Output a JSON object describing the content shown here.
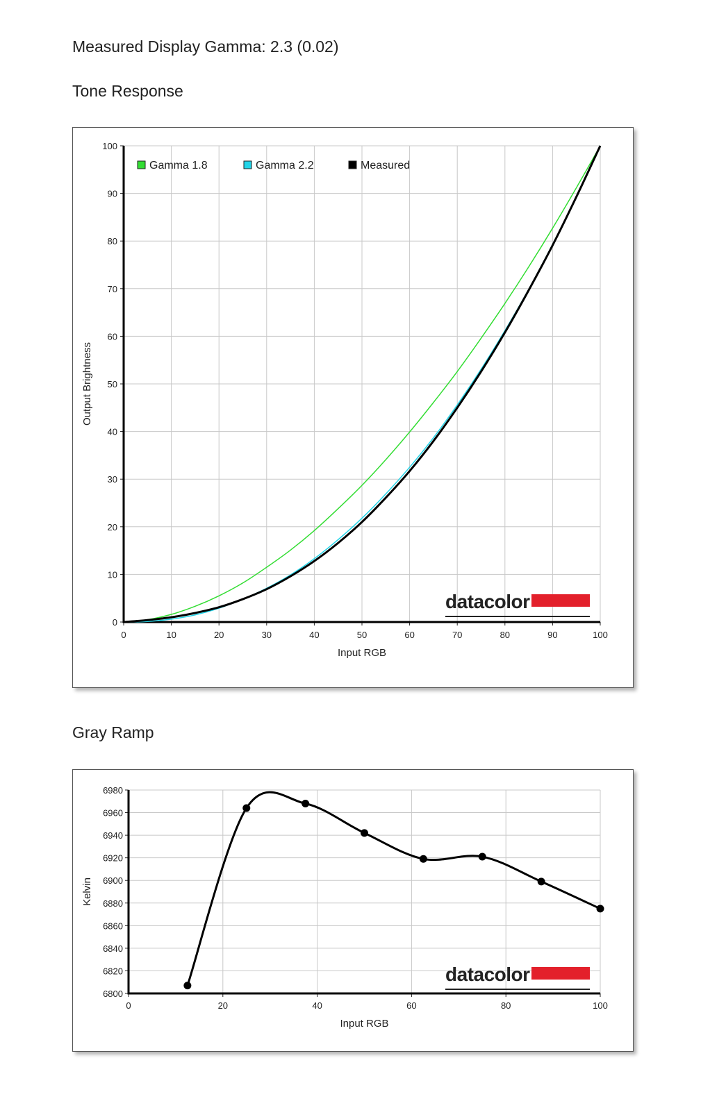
{
  "page": {
    "gamma_heading": "Measured Display Gamma: 2.3 (0.02)",
    "tone_heading": "Tone Response",
    "gray_heading": "Gray Ramp",
    "brand_text": "datacolor",
    "brand_color": "#e3202b"
  },
  "chart_data": [
    {
      "type": "line",
      "xlabel": "Input RGB",
      "ylabel": "Output Brightness",
      "xlim": [
        0,
        100
      ],
      "ylim": [
        0,
        100
      ],
      "xticks": [
        0,
        10,
        20,
        30,
        40,
        50,
        60,
        70,
        80,
        90,
        100
      ],
      "yticks": [
        0,
        10,
        20,
        30,
        40,
        50,
        60,
        70,
        80,
        90,
        100
      ],
      "grid": true,
      "legend_position": "top-left",
      "x": [
        0,
        5,
        10,
        15,
        20,
        25,
        30,
        35,
        40,
        45,
        50,
        55,
        60,
        65,
        70,
        75,
        80,
        85,
        90,
        95,
        100
      ],
      "series": [
        {
          "name": "Gamma 1.8",
          "color": "#33dd33",
          "line_width": 1.5,
          "values": [
            0,
            0.5,
            1.6,
            3.3,
            5.5,
            8.2,
            11.5,
            15.1,
            19.2,
            23.8,
            28.7,
            34.1,
            39.9,
            46.1,
            52.6,
            59.6,
            66.9,
            74.6,
            82.7,
            91.2,
            100
          ]
        },
        {
          "name": "Gamma 2.2",
          "color": "#22d4e8",
          "line_width": 1.5,
          "values": [
            0,
            0.1,
            0.6,
            1.5,
            2.9,
            4.8,
            7.1,
            9.9,
            13.3,
            17.3,
            21.8,
            26.9,
            32.5,
            38.7,
            45.6,
            53.1,
            61.2,
            69.9,
            79.3,
            89.3,
            100
          ]
        },
        {
          "name": "Measured",
          "color": "#000000",
          "line_width": 3,
          "values": [
            0,
            0.4,
            1.0,
            1.9,
            3.1,
            4.8,
            6.9,
            9.6,
            12.8,
            16.6,
            21.0,
            26.1,
            31.7,
            38.0,
            45.0,
            52.6,
            60.8,
            69.7,
            79.1,
            89.3,
            100
          ]
        }
      ]
    },
    {
      "type": "line",
      "xlabel": "Input RGB",
      "ylabel": "Kelvin",
      "xlim": [
        0,
        100
      ],
      "ylim": [
        6800,
        6980
      ],
      "xticks": [
        0,
        20,
        40,
        60,
        80,
        100
      ],
      "yticks": [
        6800,
        6820,
        6840,
        6860,
        6880,
        6900,
        6920,
        6940,
        6960,
        6980
      ],
      "grid": true,
      "series": [
        {
          "color": "#000000",
          "line_width": 3,
          "x": [
            12.5,
            25,
            37.5,
            50,
            62.5,
            75,
            87.5,
            100
          ],
          "values": [
            6807,
            6964,
            6968,
            6942,
            6919,
            6921,
            6899,
            6875
          ]
        }
      ]
    }
  ]
}
